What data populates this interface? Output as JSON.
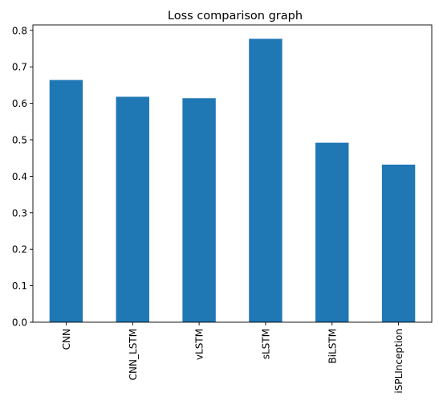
{
  "chart_data": {
    "type": "bar",
    "title": "Loss comparison graph",
    "xlabel": "",
    "ylabel": "",
    "categories": [
      "CNN",
      "CNN_LSTM",
      "vLSTM",
      "sLSTM",
      "BiLSTM",
      "iSPLInception"
    ],
    "values": [
      0.664,
      0.618,
      0.614,
      0.777,
      0.492,
      0.432
    ],
    "ylim": [
      0,
      0.815
    ],
    "yticks": [
      "0.0",
      "0.1",
      "0.2",
      "0.3",
      "0.4",
      "0.5",
      "0.6",
      "0.7",
      "0.8"
    ],
    "ytick_values": [
      0,
      0.1,
      0.2,
      0.3,
      0.4,
      0.5,
      0.6,
      0.7,
      0.8
    ],
    "bar_color": "#1f77b4",
    "grid": false,
    "legend": "none",
    "x_tick_rotation": "vertical"
  }
}
